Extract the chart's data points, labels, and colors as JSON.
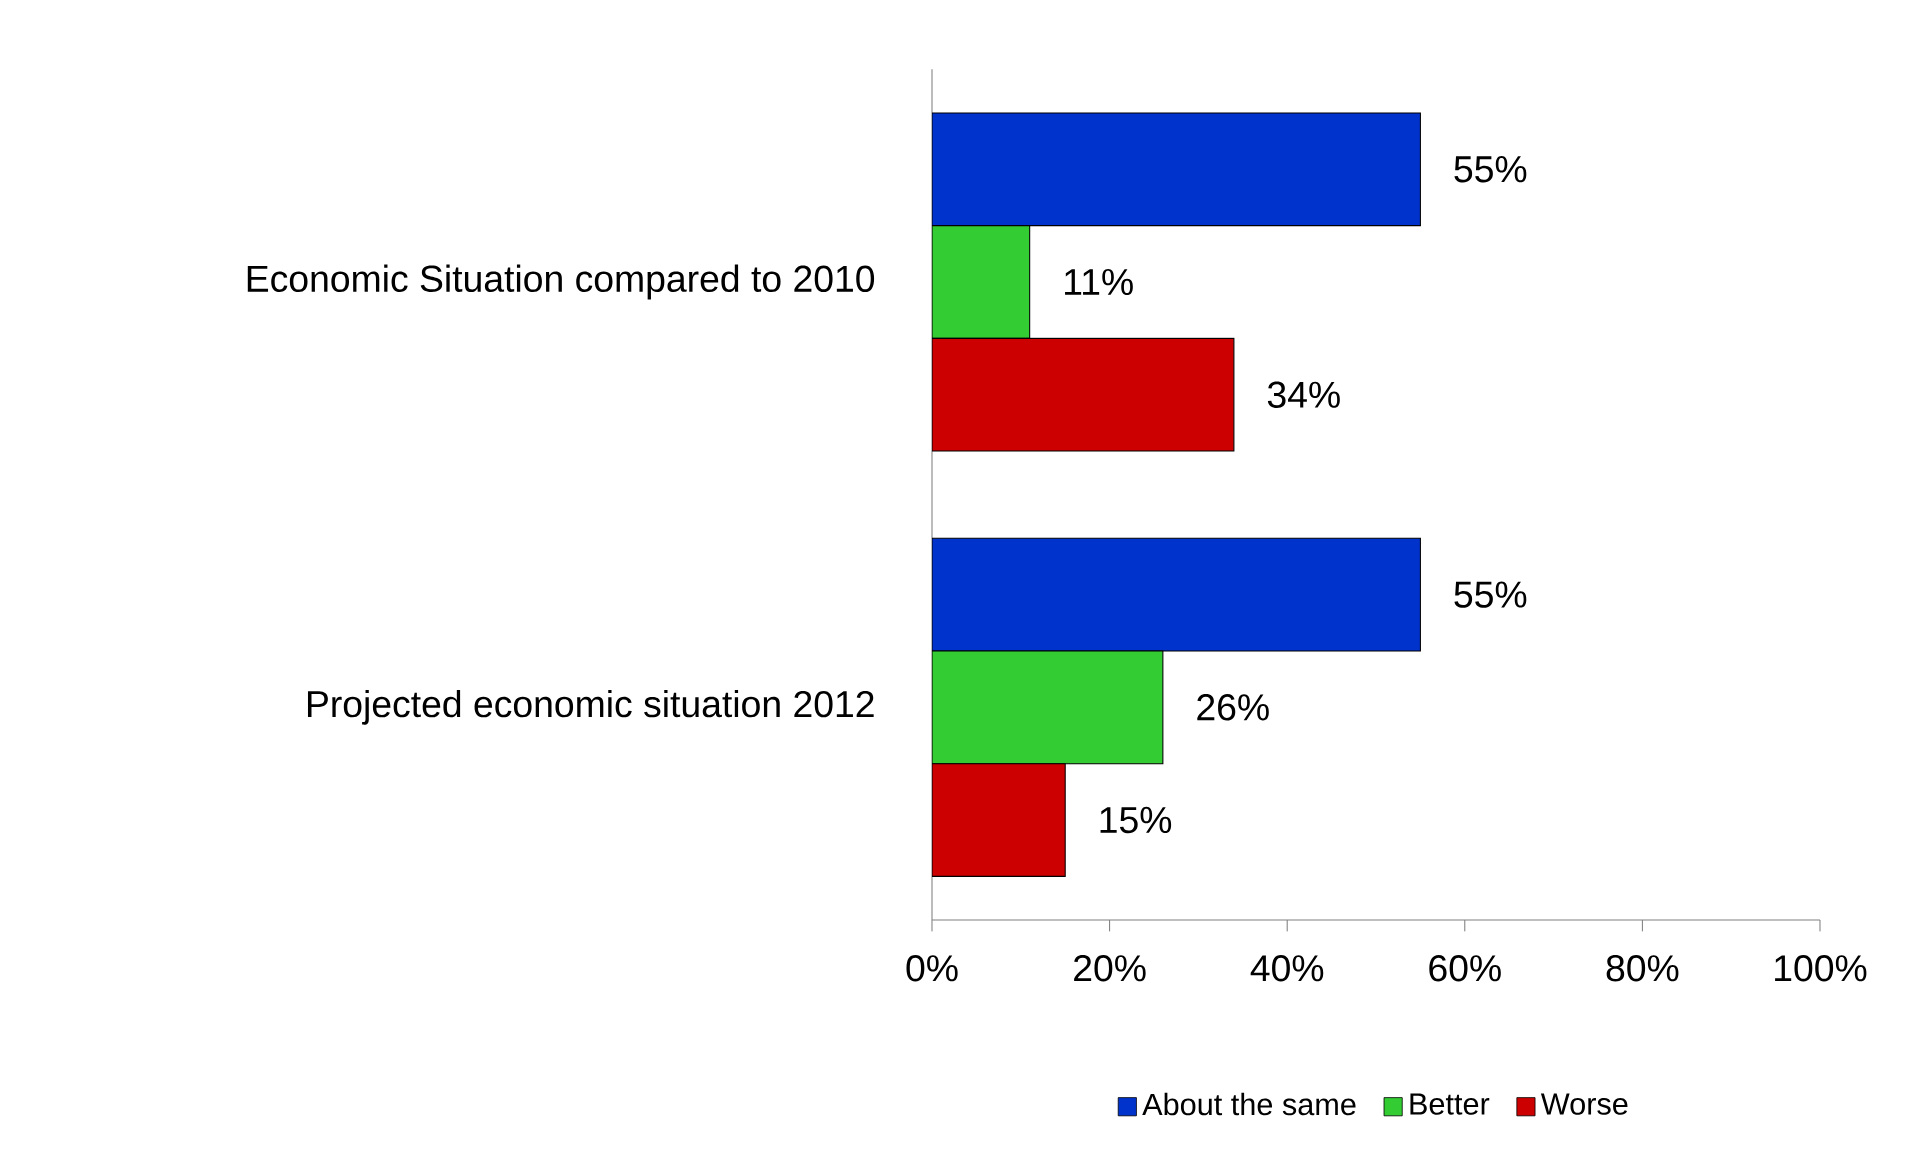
{
  "chart_data": {
    "type": "bar",
    "orientation": "horizontal",
    "categories": [
      "Economic Situation compared to 2010",
      "Projected economic situation 2012"
    ],
    "series": [
      {
        "name": "About the same",
        "color": "#0033cc",
        "values": [
          55,
          55
        ],
        "value_labels": [
          "55%",
          "55%"
        ]
      },
      {
        "name": "Better",
        "color": "#33cc33",
        "values": [
          11,
          26
        ],
        "value_labels": [
          "11%",
          "26%"
        ]
      },
      {
        "name": "Worse",
        "color": "#cc0000",
        "values": [
          34,
          15
        ],
        "value_labels": [
          "34%",
          "15%"
        ]
      }
    ],
    "xlim": [
      0,
      100
    ],
    "xticks": [
      {
        "value": 0,
        "label": "0%"
      },
      {
        "value": 20,
        "label": "20%"
      },
      {
        "value": 40,
        "label": "40%"
      },
      {
        "value": 60,
        "label": "60%"
      },
      {
        "value": 80,
        "label": "80%"
      },
      {
        "value": 100,
        "label": "100%"
      }
    ],
    "grid": false,
    "legend": "bottom"
  }
}
